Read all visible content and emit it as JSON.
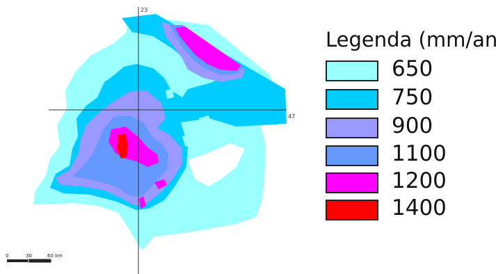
{
  "map": {
    "grid_labels": {
      "vertical": "23",
      "horizontal": "47"
    },
    "scale_bar": {
      "labels": [
        "0",
        "30",
        "60 km"
      ]
    }
  },
  "legend": {
    "title": "Legenda (mm/an)",
    "items": [
      {
        "label": "650",
        "color": "#99ffff"
      },
      {
        "label": "750",
        "color": "#00ccff"
      },
      {
        "label": "900",
        "color": "#9999ff"
      },
      {
        "label": "1100",
        "color": "#6699ff"
      },
      {
        "label": "1200",
        "color": "#ff00ff"
      },
      {
        "label": "1400",
        "color": "#ff0000"
      }
    ]
  }
}
